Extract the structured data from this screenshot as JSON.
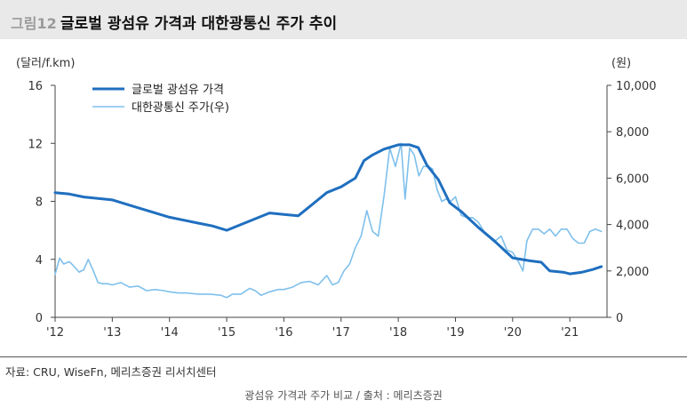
{
  "header": {
    "figure_label": "그림12",
    "title": "글로벌 광섬유 가격과 대한광통신 주가 추이"
  },
  "units": {
    "left": "(달러/f.km)",
    "right": "(원)"
  },
  "source": "자료: CRU, WiseFn,  메리츠증권 리서치센터",
  "caption": "광섬유 가격과 주가 비교 / 출처 : 메리츠증권",
  "colors": {
    "price_line": "#1f6fbf",
    "stock_line": "#7fc0ec",
    "axis": "#444444"
  },
  "chart_data": {
    "type": "line",
    "title": "글로벌 광섬유 가격과 대한광통신 주가 추이",
    "x_ticks": [
      "'12",
      "'13",
      "'14",
      "'15",
      "'16",
      "'17",
      "'18",
      "'19",
      "'20",
      "'21"
    ],
    "x_tick_years": [
      2012,
      2013,
      2014,
      2015,
      2016,
      2017,
      2018,
      2019,
      2020,
      2021
    ],
    "xlim": [
      2012,
      2021.65
    ],
    "ylabel_left": "(달러/f.km)",
    "ylabel_right": "(원)",
    "ylim_left": [
      0,
      16
    ],
    "yticks_left": [
      0,
      4,
      8,
      12,
      16
    ],
    "ylim_right": [
      0,
      10000
    ],
    "yticks_right": [
      0,
      2000,
      4000,
      6000,
      8000,
      10000
    ],
    "yticks_right_labels": [
      "0",
      "2,000",
      "4,000",
      "6,000",
      "8,000",
      "10,000"
    ],
    "grid": false,
    "legend_position": "top-left",
    "series": [
      {
        "name": "글로벌 광섬유 가격",
        "axis": "left",
        "x": [
          2012.0,
          2012.25,
          2012.5,
          2012.75,
          2013.0,
          2013.25,
          2013.5,
          2013.75,
          2014.0,
          2014.25,
          2014.5,
          2014.75,
          2015.0,
          2015.25,
          2015.5,
          2015.75,
          2016.0,
          2016.25,
          2016.5,
          2016.75,
          2017.0,
          2017.25,
          2017.4,
          2017.55,
          2017.75,
          2018.0,
          2018.2,
          2018.35,
          2018.5,
          2018.7,
          2018.9,
          2019.1,
          2019.4,
          2019.7,
          2020.0,
          2020.3,
          2020.5,
          2020.65,
          2020.9,
          2021.0,
          2021.2,
          2021.4,
          2021.55
        ],
        "values": [
          8.6,
          8.5,
          8.3,
          8.2,
          8.1,
          7.8,
          7.5,
          7.2,
          6.9,
          6.7,
          6.5,
          6.3,
          6.0,
          6.4,
          6.8,
          7.2,
          7.1,
          7.0,
          7.8,
          8.6,
          9.0,
          9.6,
          10.8,
          11.2,
          11.6,
          11.9,
          11.9,
          11.7,
          10.5,
          9.5,
          7.9,
          7.3,
          6.2,
          5.2,
          4.1,
          3.9,
          3.8,
          3.2,
          3.1,
          3.0,
          3.1,
          3.3,
          3.5
        ]
      },
      {
        "name": "대한광통신 주가(우)",
        "axis": "right",
        "x": [
          2012.0,
          2012.08,
          2012.15,
          2012.25,
          2012.33,
          2012.42,
          2012.5,
          2012.58,
          2012.67,
          2012.75,
          2012.83,
          2012.92,
          2013.0,
          2013.15,
          2013.3,
          2013.45,
          2013.6,
          2013.75,
          2013.9,
          2014.0,
          2014.15,
          2014.3,
          2014.5,
          2014.7,
          2014.9,
          2015.0,
          2015.1,
          2015.25,
          2015.4,
          2015.5,
          2015.6,
          2015.75,
          2015.9,
          2016.0,
          2016.15,
          2016.3,
          2016.45,
          2016.6,
          2016.75,
          2016.85,
          2016.95,
          2017.05,
          2017.15,
          2017.25,
          2017.35,
          2017.45,
          2017.55,
          2017.65,
          2017.75,
          2017.85,
          2017.95,
          2018.05,
          2018.12,
          2018.2,
          2018.28,
          2018.36,
          2018.44,
          2018.52,
          2018.6,
          2018.68,
          2018.76,
          2018.84,
          2018.92,
          2019.0,
          2019.1,
          2019.2,
          2019.3,
          2019.4,
          2019.5,
          2019.6,
          2019.7,
          2019.8,
          2019.9,
          2020.0,
          2020.1,
          2020.18,
          2020.25,
          2020.35,
          2020.45,
          2020.55,
          2020.65,
          2020.75,
          2020.85,
          2020.95,
          2021.05,
          2021.15,
          2021.25,
          2021.35,
          2021.45,
          2021.55
        ],
        "values": [
          1850,
          2550,
          2300,
          2400,
          2200,
          1950,
          2050,
          2500,
          2000,
          1500,
          1450,
          1450,
          1400,
          1500,
          1300,
          1350,
          1150,
          1200,
          1150,
          1100,
          1050,
          1050,
          1000,
          1000,
          950,
          850,
          1000,
          1000,
          1250,
          1150,
          950,
          1100,
          1200,
          1200,
          1300,
          1500,
          1550,
          1400,
          1800,
          1400,
          1500,
          2000,
          2300,
          3000,
          3500,
          4600,
          3700,
          3500,
          5200,
          7300,
          6500,
          7500,
          5100,
          7300,
          7000,
          6100,
          6500,
          6500,
          6400,
          5500,
          5000,
          5100,
          5000,
          5200,
          4400,
          4300,
          4300,
          4100,
          3700,
          3500,
          3300,
          3500,
          2900,
          2800,
          2400,
          2000,
          3300,
          3800,
          3800,
          3600,
          3800,
          3500,
          3800,
          3800,
          3400,
          3200,
          3200,
          3700,
          3800,
          3700
        ]
      }
    ]
  }
}
